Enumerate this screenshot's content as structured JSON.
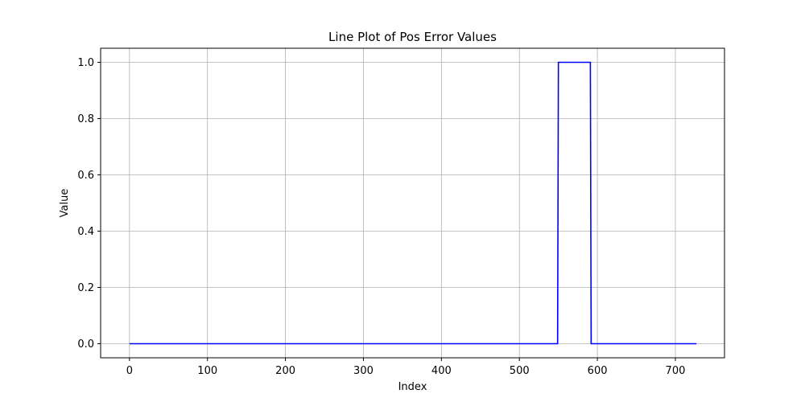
{
  "chart_data": {
    "type": "line",
    "title": "Line Plot of Pos Error Values",
    "xlabel": "Index",
    "ylabel": "Value",
    "xlim": [
      -37,
      763
    ],
    "ylim": [
      -0.05,
      1.05
    ],
    "x_ticks": [
      0,
      100,
      200,
      300,
      400,
      500,
      600,
      700
    ],
    "y_ticks": [
      0.0,
      0.2,
      0.4,
      0.6,
      0.8,
      1.0
    ],
    "x_tick_labels": [
      "0",
      "100",
      "200",
      "300",
      "400",
      "500",
      "600",
      "700"
    ],
    "y_tick_labels": [
      "0.0",
      "0.2",
      "0.4",
      "0.6",
      "0.8",
      "1.0"
    ],
    "grid": true,
    "series": [
      {
        "color": "#0000ff",
        "x": [
          0,
          549,
          550,
          591,
          592,
          727
        ],
        "y": [
          0,
          0,
          1,
          1,
          0,
          0
        ]
      }
    ]
  }
}
